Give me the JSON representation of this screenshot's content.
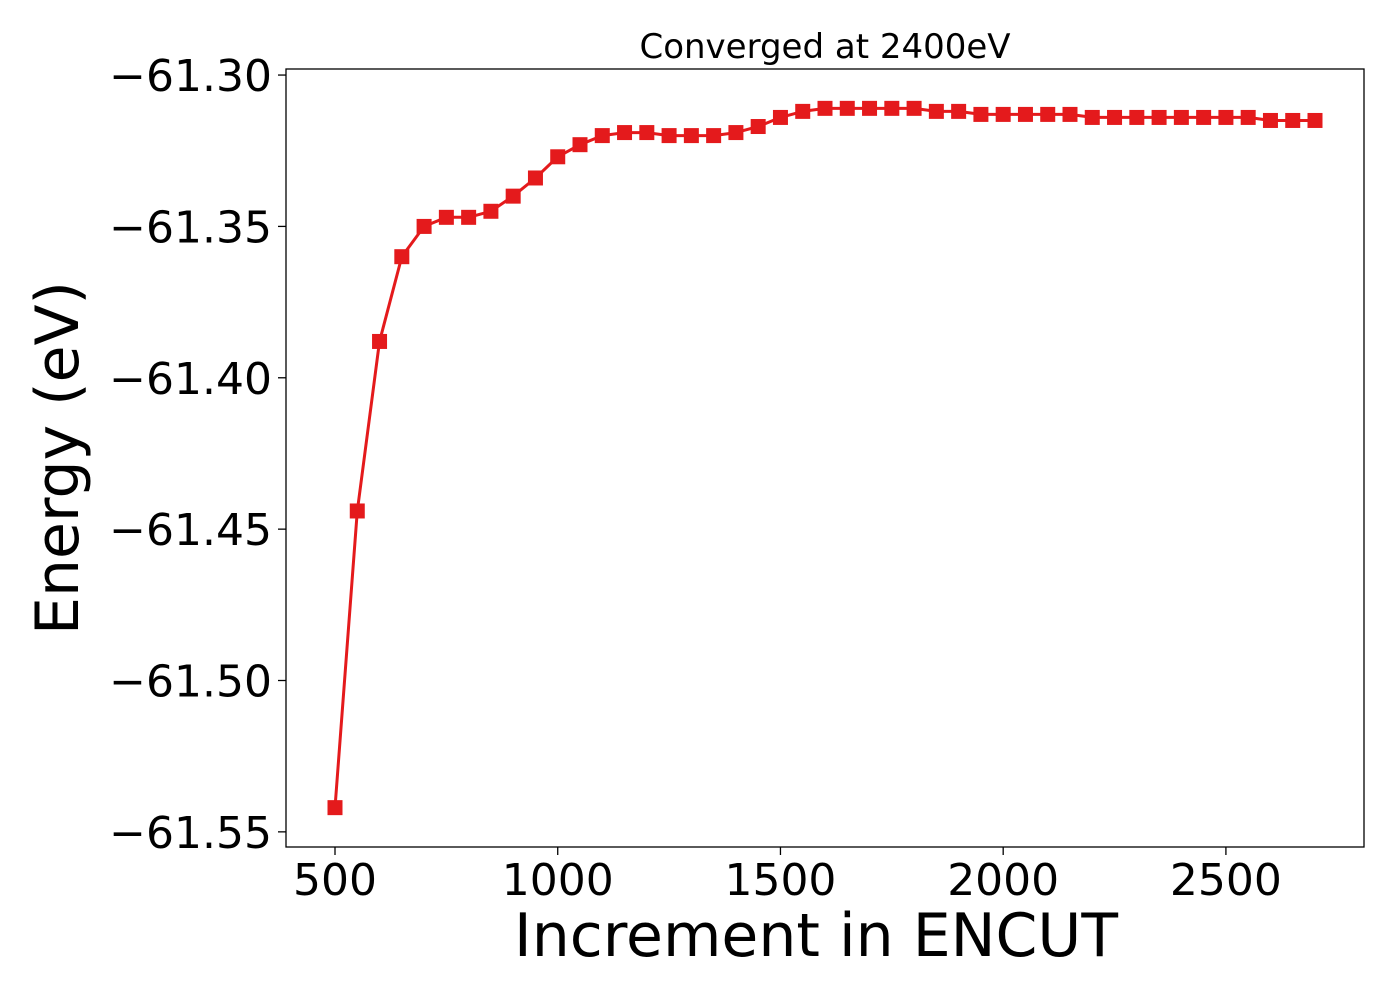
{
  "chart_data": {
    "type": "line",
    "title": "Converged at 2400eV",
    "xlabel": "Increment in ENCUT",
    "ylabel": "Energy (eV)",
    "xlim": [
      390,
      2810
    ],
    "ylim": [
      -61.555,
      -61.298
    ],
    "xticks": [
      500,
      1000,
      1500,
      2000,
      2500
    ],
    "yticks": [
      -61.3,
      -61.35,
      -61.4,
      -61.45,
      -61.5,
      -61.55
    ],
    "grid": false,
    "marker": "square",
    "line_color": "#e41a1c",
    "series": [
      {
        "x": [
          500,
          550,
          600,
          650,
          700,
          750,
          800,
          850,
          900,
          950,
          1000,
          1050,
          1100,
          1150,
          1200,
          1250,
          1300,
          1350,
          1400,
          1450,
          1500,
          1550,
          1600,
          1650,
          1700,
          1750,
          1800,
          1850,
          1900,
          1950,
          2000,
          2050,
          2100,
          2150,
          2200,
          2250,
          2300,
          2350,
          2400,
          2450,
          2500,
          2550,
          2600,
          2650,
          2700
        ],
        "y": [
          -61.542,
          -61.444,
          -61.388,
          -61.36,
          -61.35,
          -61.347,
          -61.347,
          -61.345,
          -61.34,
          -61.334,
          -61.327,
          -61.323,
          -61.32,
          -61.319,
          -61.319,
          -61.32,
          -61.32,
          -61.32,
          -61.319,
          -61.317,
          -61.314,
          -61.312,
          -61.311,
          -61.311,
          -61.311,
          -61.311,
          -61.311,
          -61.312,
          -61.312,
          -61.313,
          -61.313,
          -61.313,
          -61.313,
          -61.313,
          -61.314,
          -61.314,
          -61.314,
          -61.314,
          -61.314,
          -61.314,
          -61.314,
          -61.314,
          -61.315,
          -61.315,
          -61.315
        ]
      }
    ]
  }
}
